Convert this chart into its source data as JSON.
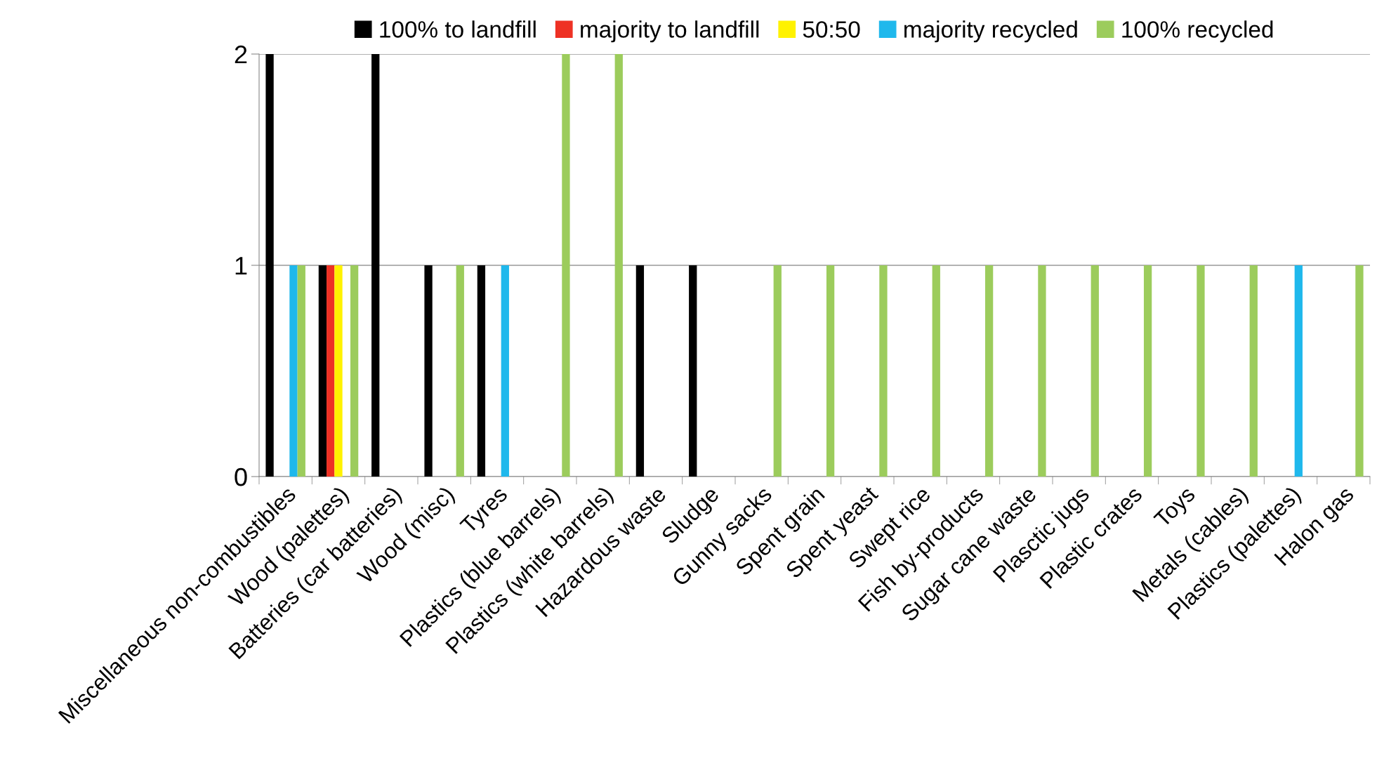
{
  "chart_data": {
    "type": "bar",
    "categories": [
      "Miscellaneous non-combustibles",
      "Wood (palettes)",
      "Batteries (car batteries)",
      "Wood (misc)",
      "Tyres",
      "Plastics (blue barrels)",
      "Plastics (white barrels)",
      "Hazardous waste",
      "Sludge",
      "Gunny sacks",
      "Spent grain",
      "Spent yeast",
      "Swept rice",
      "Fish by-products",
      "Sugar cane waste",
      "Plasctic jugs",
      "Plastic crates",
      "Toys",
      "Metals (cables)",
      "Plastics (palettes)",
      "Halon gas"
    ],
    "series": [
      {
        "name": "100% to landfill",
        "color": "#000000",
        "values": [
          2,
          1,
          2,
          1,
          1,
          0,
          0,
          1,
          1,
          0,
          0,
          0,
          0,
          0,
          0,
          0,
          0,
          0,
          0,
          0,
          0
        ]
      },
      {
        "name": "majority to landfill",
        "color": "#ee3124",
        "values": [
          0,
          1,
          0,
          0,
          0,
          0,
          0,
          0,
          0,
          0,
          0,
          0,
          0,
          0,
          0,
          0,
          0,
          0,
          0,
          0,
          0
        ]
      },
      {
        "name": "50:50",
        "color": "#fff200",
        "values": [
          0,
          1,
          0,
          0,
          0,
          0,
          0,
          0,
          0,
          0,
          0,
          0,
          0,
          0,
          0,
          0,
          0,
          0,
          0,
          0,
          0
        ]
      },
      {
        "name": "majority recycled",
        "color": "#1fb8ec",
        "values": [
          1,
          0,
          0,
          0,
          1,
          0,
          0,
          0,
          0,
          0,
          0,
          0,
          0,
          0,
          0,
          0,
          0,
          0,
          0,
          1,
          0
        ]
      },
      {
        "name": "100% recycled",
        "color": "#9ccc5c",
        "values": [
          1,
          1,
          0,
          1,
          0,
          2,
          2,
          0,
          0,
          1,
          1,
          1,
          1,
          1,
          1,
          1,
          1,
          1,
          1,
          0,
          1
        ]
      }
    ],
    "ylim": [
      0,
      2
    ],
    "yticks": [
      0,
      1,
      2
    ],
    "grid": "y",
    "legend": "top"
  }
}
